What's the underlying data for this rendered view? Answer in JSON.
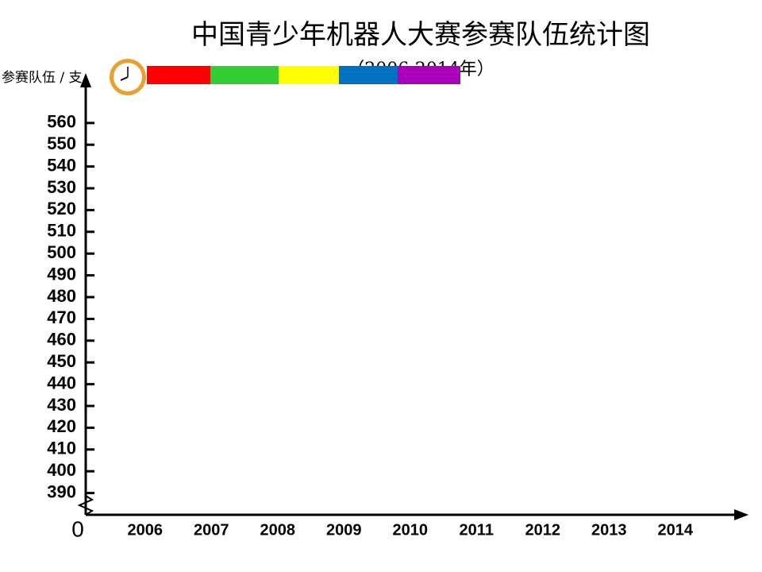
{
  "chart_data": {
    "type": "bar",
    "title": "中国青少年机器人大赛参赛队伍统计图",
    "subtitle": "（2006-2014年）",
    "y_label": "参赛队伍 / 支",
    "origin_label": "0",
    "categories": [
      "2006",
      "2007",
      "2008",
      "2009",
      "2010",
      "2011",
      "2012",
      "2013",
      "2014"
    ],
    "ylim": [
      380,
      580
    ],
    "yticks": [
      390,
      400,
      410,
      420,
      430,
      440,
      450,
      460,
      470,
      480,
      490,
      500,
      510,
      520,
      530,
      540,
      550,
      560
    ]
  }
}
